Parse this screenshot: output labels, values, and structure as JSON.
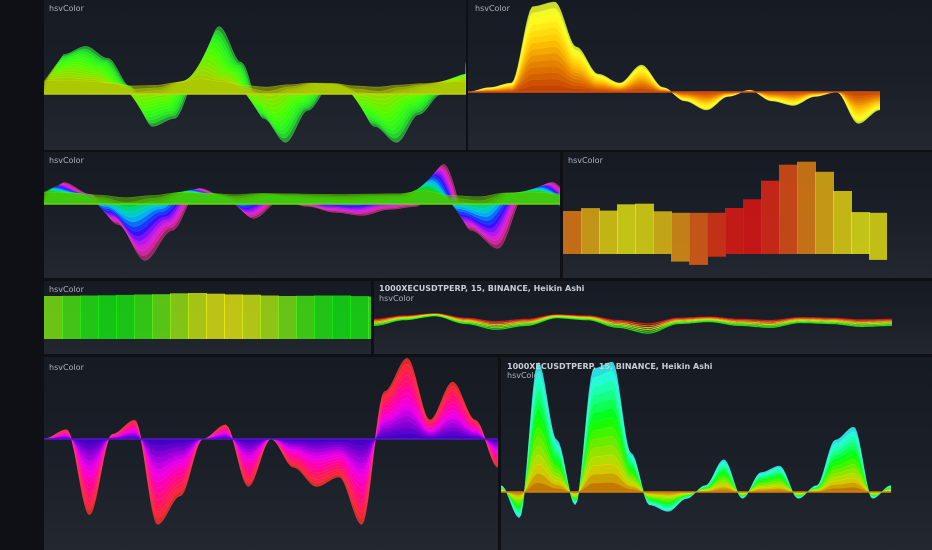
{
  "panels": [
    {
      "title": "hsvColor",
      "header": "",
      "chart_data": {
        "type": "area",
        "style": "ribbon",
        "hue_start": 65,
        "hue_end": 125,
        "series": [
          {
            "values": [
              0.6,
              0.7,
              0.55,
              0.2,
              -0.3,
              -0.2,
              0.3,
              0.95,
              0.5,
              -0.2,
              -0.5,
              -0.1,
              0.2,
              0.15,
              -0.3,
              -0.5,
              -0.15,
              0.1,
              0.35,
              0.5
            ]
          }
        ]
      }
    },
    {
      "title": "hsvColor",
      "header": "",
      "chart_data": {
        "type": "area",
        "style": "stack",
        "hue_start": 20,
        "hue_end": 65,
        "series": [
          {
            "values": [
              0,
              0.05,
              0.1,
              0.95,
              1.0,
              0.5,
              0.2,
              0.1,
              0.3,
              0.05,
              -0.1,
              -0.2,
              -0.05,
              0.02,
              -0.1,
              -0.15,
              -0.05,
              0,
              -0.35,
              -0.2
            ]
          }
        ]
      }
    },
    {
      "title": "hsvColor",
      "header": "",
      "chart_data": {
        "type": "area",
        "style": "ribbon",
        "hue_start": 90,
        "hue_end": 330,
        "series": [
          {
            "values": [
              0.5,
              0.3,
              -0.2,
              -0.8,
              -0.3,
              0.4,
              0.25,
              -0.1,
              0.2,
              0.1,
              0,
              -0.05,
              0.05,
              0.1,
              0.8,
              -0.3,
              -0.6,
              0.3,
              0.5,
              0.1
            ]
          }
        ]
      }
    },
    {
      "title": "hsvColor",
      "header": "",
      "chart_data": {
        "type": "area",
        "style": "band",
        "hue_start": 0,
        "hue_end": 60,
        "series": [
          {
            "values": [
              0.05,
              0.1,
              0.05,
              0.2,
              0.15,
              -0.1,
              -0.2,
              -0.05,
              0.1,
              0.25,
              0.6,
              0.9,
              0.85,
              0.5,
              0.05,
              -0.1,
              -0.05
            ]
          }
        ]
      }
    },
    {
      "title": "hsvColor",
      "header": "",
      "chart_data": {
        "type": "area",
        "style": "band",
        "hue_start": 60,
        "hue_end": 120,
        "series": [
          {
            "values": [
              0.1,
              0.12,
              0.15,
              0.2,
              0.15,
              0.1,
              0.12,
              0.08
            ]
          }
        ]
      }
    },
    {
      "title": "hsvColor",
      "header": "1000XECUSDTPERP, 15, BINANCE, Heikin Ashi",
      "chart_data": {
        "type": "line",
        "style": "lines",
        "hue_start": 0,
        "hue_end": 120,
        "series": [
          {
            "values": [
              0,
              0.3,
              0.5,
              0.1,
              -0.2,
              0,
              0.4,
              0.3,
              -0.1,
              -0.4,
              0.1,
              0.2,
              0,
              -0.1,
              0.15,
              0.1,
              -0.05,
              0
            ]
          }
        ]
      }
    },
    {
      "title": "hsvColor",
      "header": "",
      "chart_data": {
        "type": "area",
        "style": "stack",
        "hue_start": 260,
        "hue_end": 360,
        "series": [
          {
            "values": [
              0,
              0.1,
              -0.8,
              0.05,
              0.2,
              -0.9,
              -0.6,
              0,
              0.15,
              -0.5,
              0,
              -0.3,
              -0.5,
              -0.4,
              -0.9,
              0.5,
              0.85,
              0.2,
              0.6,
              0.2,
              -0.3
            ]
          }
        ]
      }
    },
    {
      "title": "hsvColor",
      "header": "1000XECUSDTPERP, 15, BINANCE, Heikin Ashi",
      "chart_data": {
        "type": "area",
        "style": "stack",
        "hue_start": 35,
        "hue_end": 180,
        "series": [
          {
            "values": [
              0.05,
              -0.2,
              1.0,
              0.4,
              -0.1,
              0.95,
              1.0,
              0.3,
              -0.1,
              -0.15,
              -0.05,
              0.05,
              0.25,
              -0.05,
              0.15,
              0.2,
              -0.05,
              0.05,
              0.4,
              0.5,
              -0.05,
              0.05
            ]
          }
        ]
      }
    }
  ]
}
